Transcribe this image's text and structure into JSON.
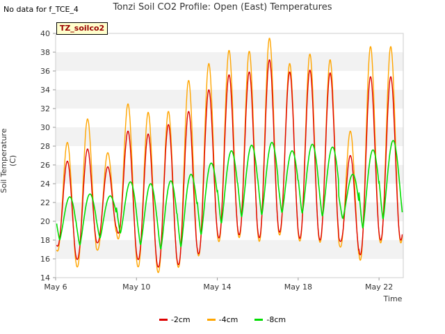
{
  "note": "No data for f_TCE_4",
  "badge": "TZ_soilco2",
  "chart_data": {
    "type": "line",
    "title": "Tonzi Soil CO2 Profile: Open (East) Temperatures",
    "xlabel": "Time",
    "ylabel": "Soil Temperature (C)",
    "xlim": [
      6,
      23.2
    ],
    "ylim": [
      14,
      40
    ],
    "yticks": [
      14,
      16,
      18,
      20,
      22,
      24,
      26,
      28,
      30,
      32,
      34,
      36,
      38,
      40
    ],
    "xticks": [
      {
        "day": 6,
        "label": "May 6"
      },
      {
        "day": 10,
        "label": "May 10"
      },
      {
        "day": 14,
        "label": "May 14"
      },
      {
        "day": 18,
        "label": "May 18"
      },
      {
        "day": 22,
        "label": "May 22"
      }
    ],
    "grid": "horizontal alternating bands",
    "legend": "bottom",
    "series": [
      {
        "name": "-2cm",
        "color": "#dd0000",
        "peaks": [
          26.4,
          27.7,
          25.8,
          29.6,
          29.3,
          30.3,
          31.7,
          34.0,
          35.6,
          35.9,
          37.2,
          35.9,
          36.1,
          35.8,
          27.0,
          35.4
        ],
        "troughs": [
          17.5,
          15.8,
          17.6,
          19.0,
          16.0,
          15.1,
          15.3,
          16.4,
          18.2,
          18.6,
          18.2,
          18.9,
          18.2,
          18.0,
          18.0,
          16.3,
          18.0
        ]
      },
      {
        "name": "-4cm",
        "color": "#ffa500",
        "peaks": [
          28.4,
          30.9,
          27.3,
          32.5,
          31.6,
          31.7,
          35.0,
          36.8,
          38.2,
          38.1,
          39.5,
          36.8,
          37.8,
          37.2,
          29.6,
          38.6
        ],
        "troughs": [
          17.0,
          15.0,
          16.8,
          18.4,
          15.2,
          14.5,
          15.0,
          16.2,
          17.8,
          18.3,
          17.8,
          18.6,
          17.9,
          17.8,
          17.4,
          15.7,
          17.7
        ]
      },
      {
        "name": "-8cm",
        "color": "#00dd00",
        "peaks": [
          22.6,
          22.9,
          22.7,
          24.2,
          24.0,
          24.3,
          25.0,
          26.2,
          27.5,
          28.1,
          28.4,
          27.5,
          28.2,
          27.9,
          25.0,
          27.6,
          28.6
        ],
        "troughs": [
          18.2,
          17.3,
          18.0,
          19.0,
          17.6,
          17.0,
          17.0,
          18.3,
          19.6,
          20.4,
          20.6,
          20.9,
          20.9,
          20.5,
          20.6,
          19.0,
          20.2
        ]
      }
    ]
  }
}
